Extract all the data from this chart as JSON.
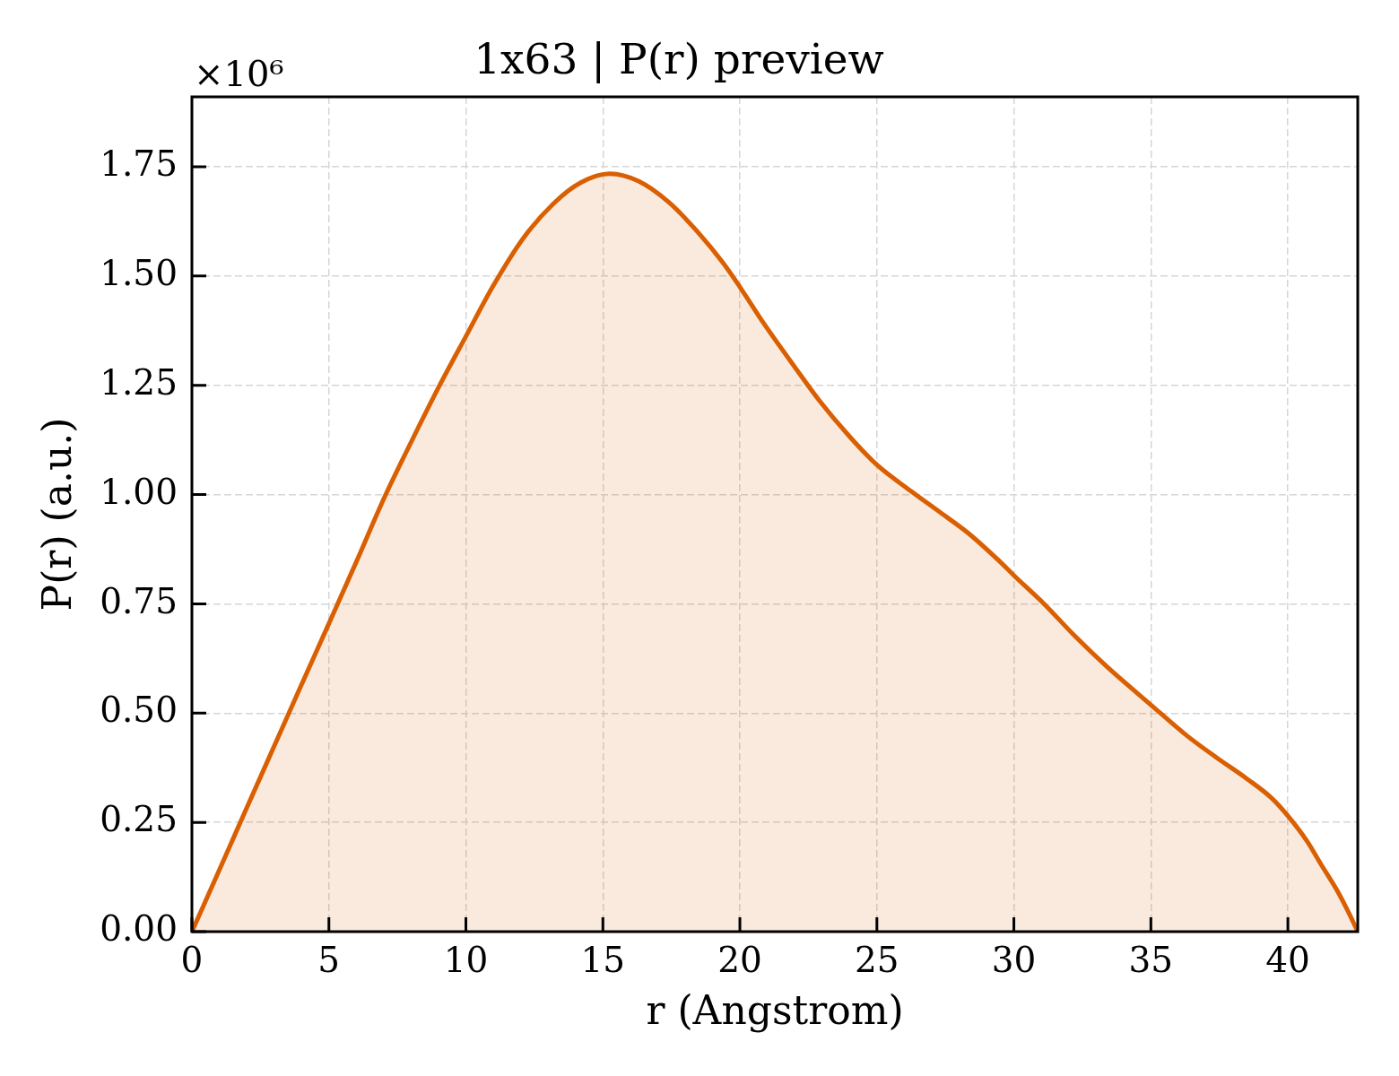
{
  "chart_data": {
    "type": "area",
    "title": "1x63 | P(r) preview",
    "xlabel": "r (Angstrom)",
    "ylabel": "P(r) (a.u.)",
    "annotations": [
      "×10⁶"
    ],
    "x": [
      0,
      1,
      2,
      3,
      4,
      5,
      6,
      7,
      8,
      9,
      10,
      11,
      12.1,
      13.2,
      14.2,
      15.25,
      16.3,
      17.4,
      18.5,
      19.4,
      20,
      20.9,
      22,
      22.9,
      24,
      25,
      26.2,
      27.25,
      28.35,
      29.45,
      30,
      31.1,
      32.2,
      33.4,
      35,
      36.3,
      37.4,
      38.5,
      39.4,
      40,
      40.7,
      41.2,
      41.8,
      42.2,
      42.55
    ],
    "series": [
      {
        "color": "#d95f02",
        "values": [
          0,
          0.141,
          0.283,
          0.424,
          0.565,
          0.705,
          0.846,
          0.99,
          1.12,
          1.245,
          1.362,
          1.478,
          1.587,
          1.666,
          1.714,
          1.734,
          1.717,
          1.669,
          1.598,
          1.529,
          1.475,
          1.389,
          1.292,
          1.215,
          1.133,
          1.068,
          1.01,
          0.962,
          0.911,
          0.849,
          0.815,
          0.75,
          0.678,
          0.606,
          0.519,
          0.449,
          0.398,
          0.35,
          0.306,
          0.265,
          0.207,
          0.155,
          0.094,
          0.046,
          0
        ]
      }
    ],
    "xlim": [
      0,
      42.55
    ],
    "ylim": [
      0,
      1.91
    ],
    "xticks": [
      0,
      5,
      10,
      15,
      20,
      25,
      30,
      35,
      40
    ],
    "yticks": [
      {
        "value": 0,
        "label": "0.00"
      },
      0.25,
      {
        "value": 0.5,
        "label": "0.50"
      },
      0.75,
      {
        "value": 1,
        "label": "1.00"
      },
      1.25,
      {
        "value": 1.5,
        "label": "1.50"
      },
      1.75
    ],
    "grid": true,
    "marker": "none",
    "line_style": "solid"
  }
}
